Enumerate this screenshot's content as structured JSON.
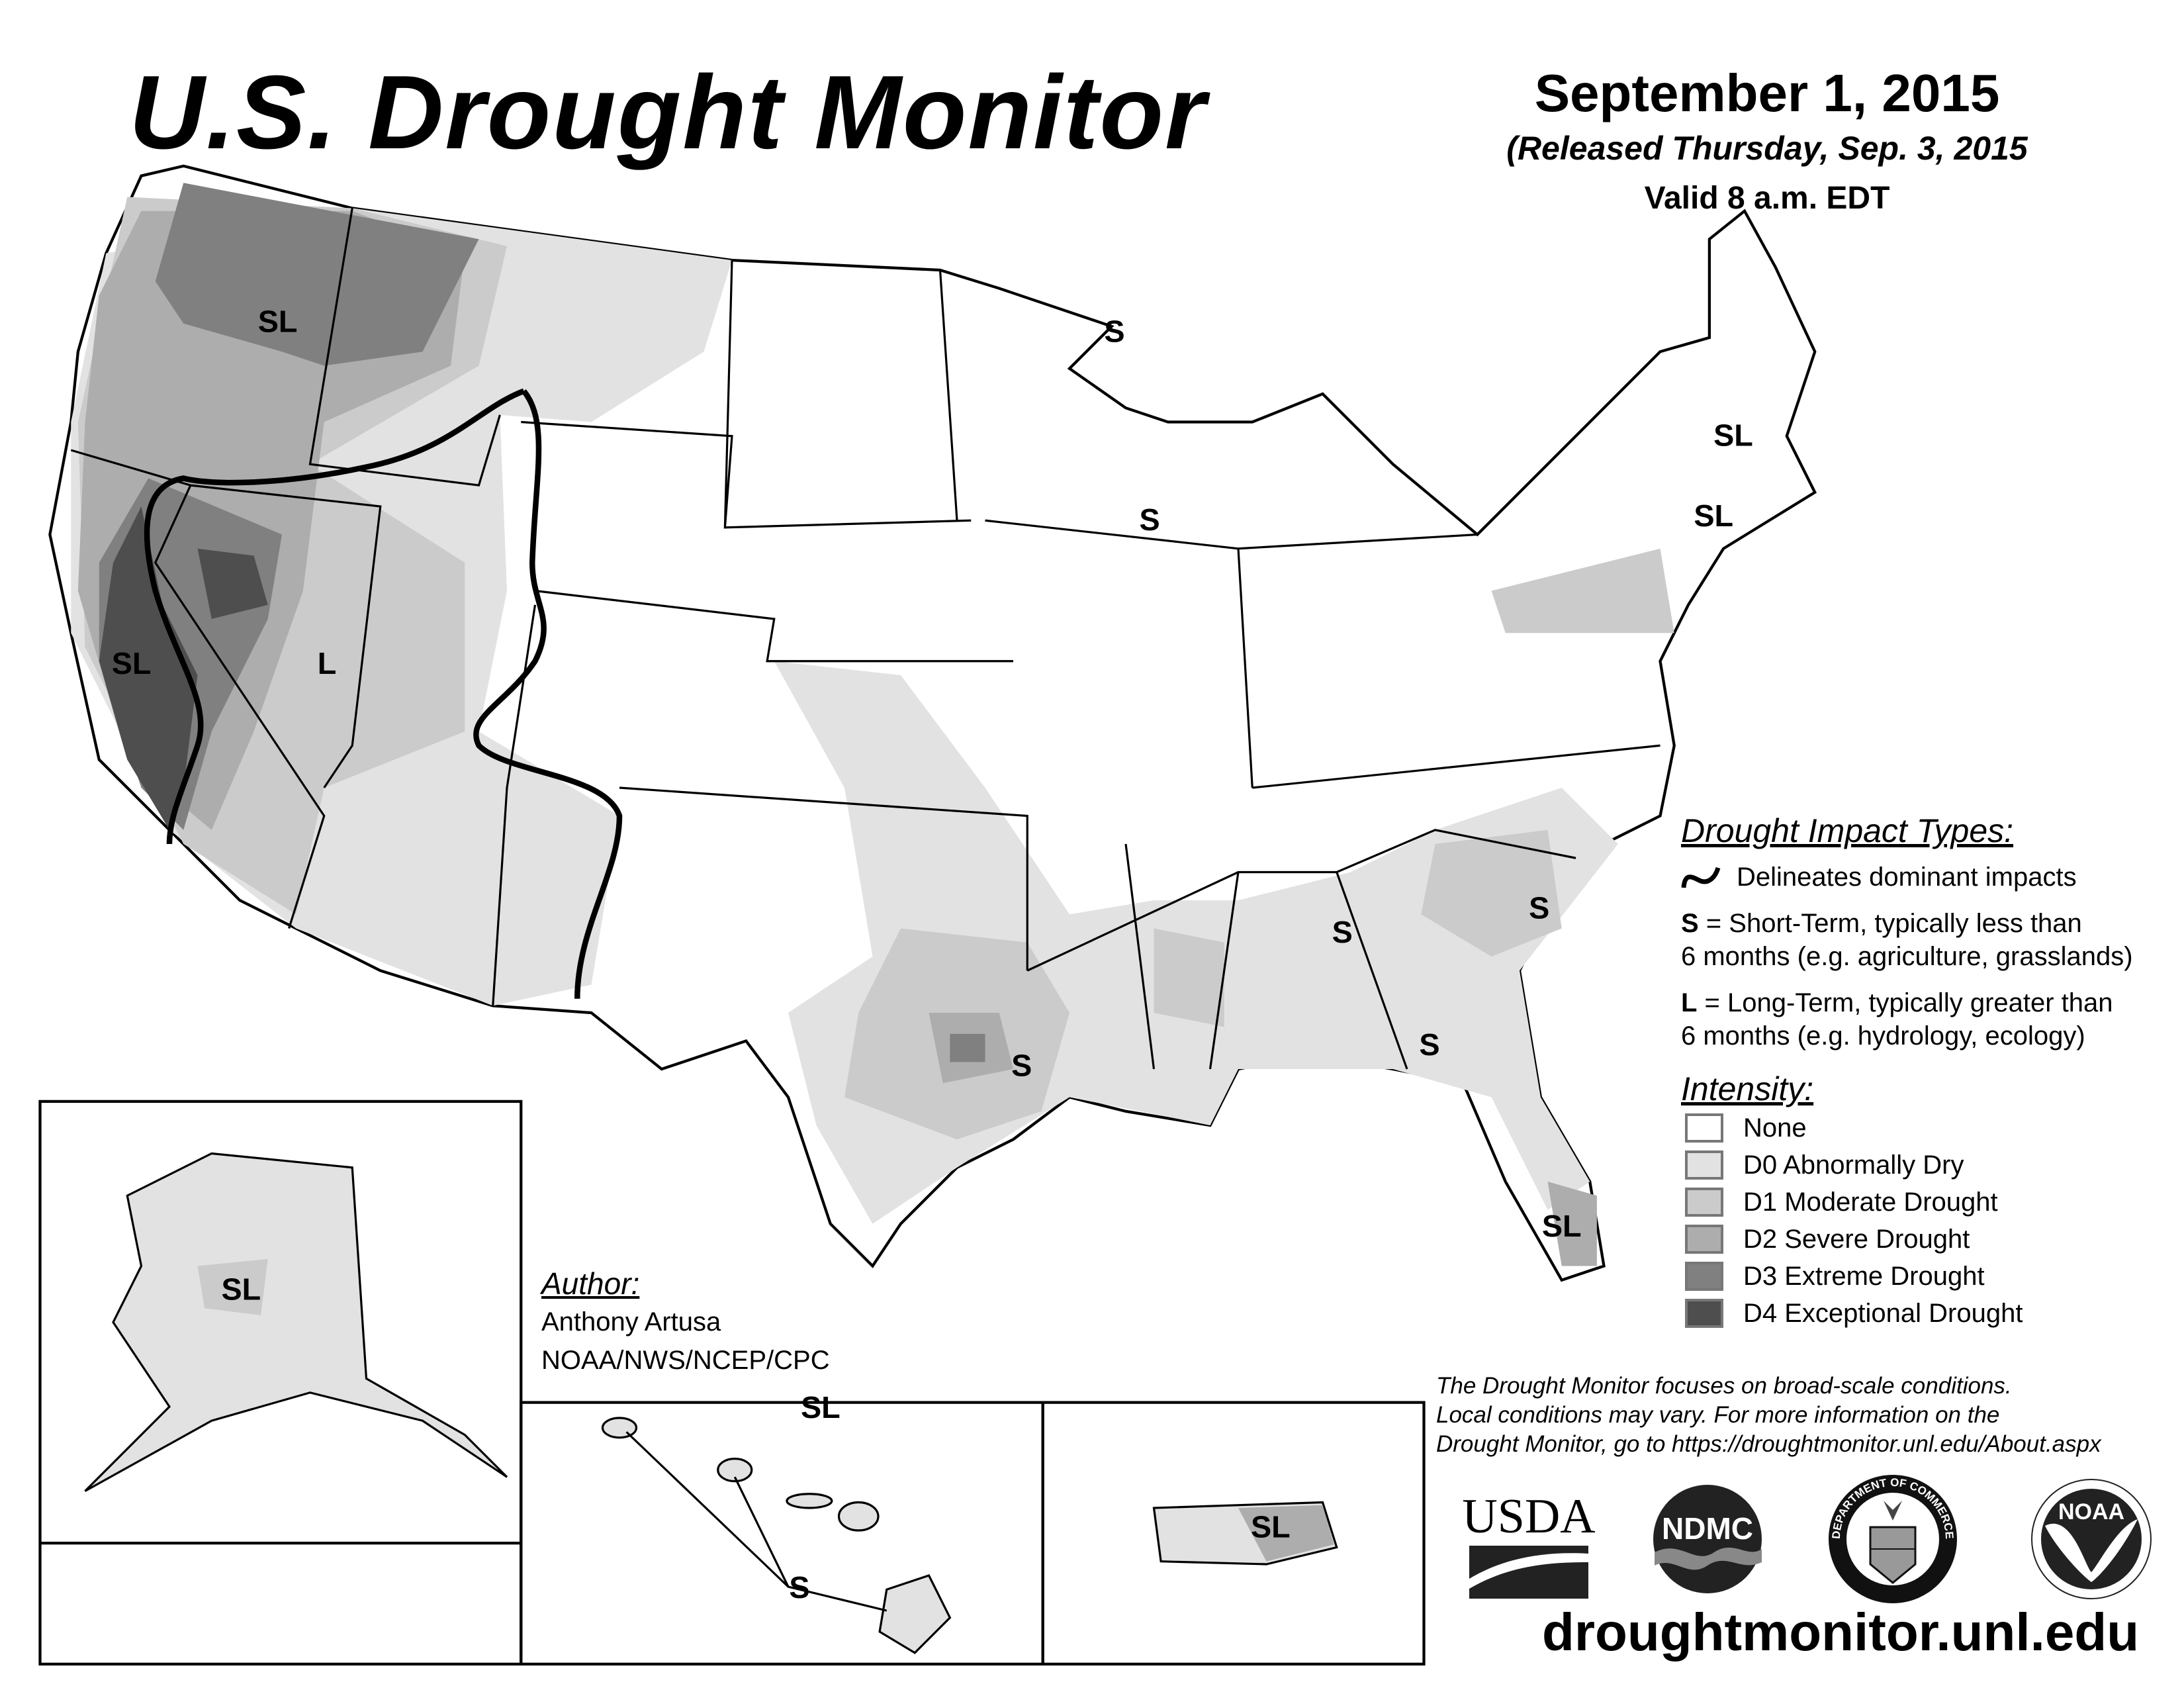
{
  "header": {
    "title": "U.S. Drought Monitor",
    "date": "September 1, 2015",
    "released": "(Released Thursday, Sep. 3, 2015",
    "valid": "Valid 8 a.m. EDT"
  },
  "legend": {
    "impact_heading": "Drought Impact Types:",
    "delineates": "Delineates dominant impacts",
    "s_key": "S",
    "s_desc": " = Short-Term, typically less than",
    "s_desc2": "6 months (e.g. agriculture, grasslands)",
    "l_key": "L",
    "l_desc": " = Long-Term, typically greater than",
    "l_desc2": "6 months (e.g. hydrology, ecology)",
    "intensity_heading": "Intensity:",
    "categories": [
      {
        "label": "None",
        "color": "#ffffff"
      },
      {
        "label": "D0 Abnormally Dry",
        "color": "#e2e2e2"
      },
      {
        "label": "D1 Moderate Drought",
        "color": "#cbcbcb"
      },
      {
        "label": "D2 Severe Drought",
        "color": "#adadad"
      },
      {
        "label": "D3 Extreme Drought",
        "color": "#808080"
      },
      {
        "label": "D4 Exceptional Drought",
        "color": "#4e4e4e"
      }
    ]
  },
  "author": {
    "heading": "Author:",
    "name": "Anthony Artusa",
    "org": "NOAA/NWS/NCEP/CPC"
  },
  "disclaimer": [
    "The Drought Monitor focuses on broad-scale conditions.",
    "Local conditions may vary. For more information on the",
    "Drought Monitor, go to https://droughtmonitor.unl.edu/About.aspx"
  ],
  "logos": {
    "usda": "USDA",
    "ndmc": "NDMC",
    "commerce": "DEPARTMENT OF COMMERCE",
    "noaa": "NOAA"
  },
  "url": "droughtmonitor.unl.edu",
  "map_labels": [
    "SL",
    "SL",
    "L",
    "S",
    "S",
    "SL",
    "SL",
    "S",
    "S",
    "S",
    "S",
    "SL",
    "SL",
    "SL",
    "S",
    "SL"
  ]
}
